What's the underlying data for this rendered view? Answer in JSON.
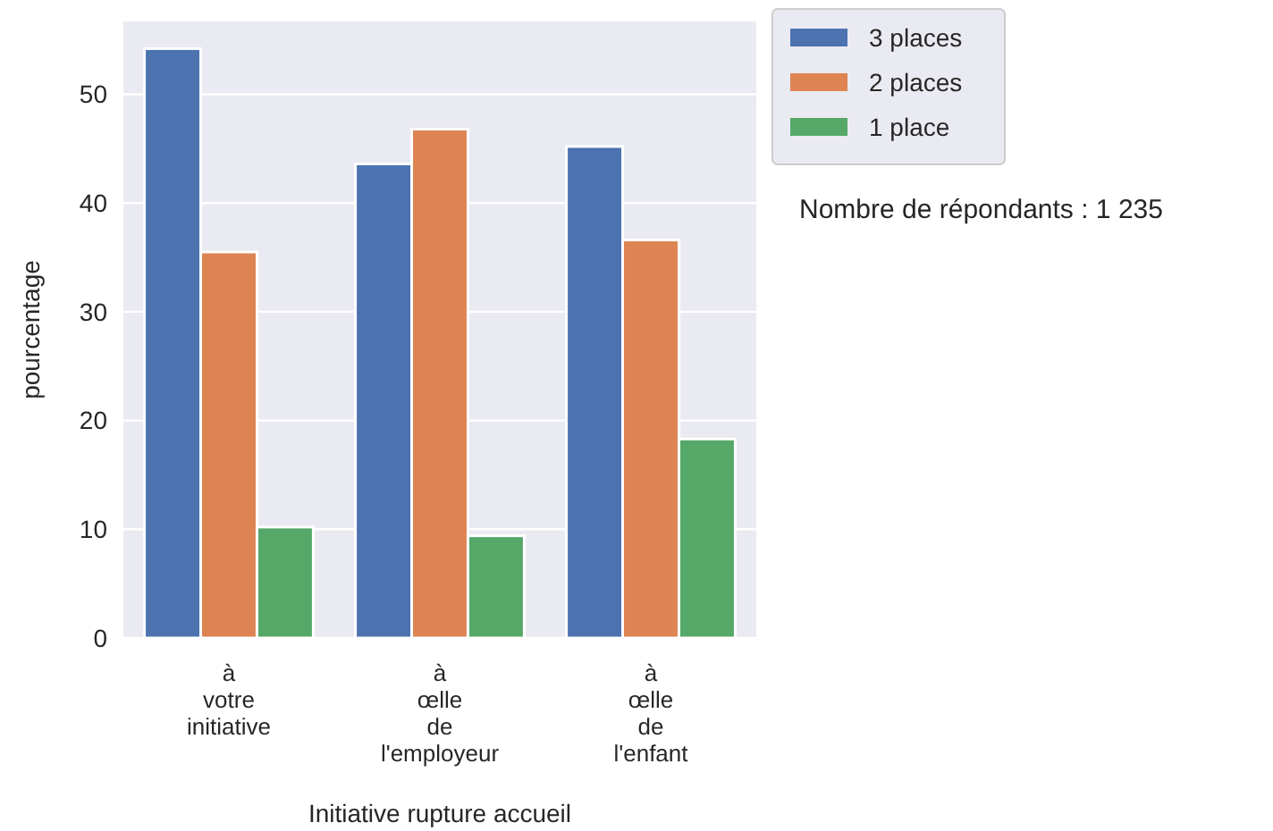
{
  "chart_data": {
    "type": "bar",
    "xlabel": "Initiative rupture accueil",
    "ylabel": "pourcentage",
    "categories": [
      "à\nvotre\ninitiative",
      "à\nœlle\nde\nl'employeur",
      "à\nœlle\nde\nl'enfant"
    ],
    "series": [
      {
        "name": "3 places",
        "color": "#4c72b0",
        "values": [
          54.2,
          43.6,
          45.2
        ]
      },
      {
        "name": "2 places",
        "color": "#dd8452",
        "values": [
          35.5,
          46.8,
          36.6
        ]
      },
      {
        "name": "1 place",
        "color": "#55a868",
        "values": [
          10.2,
          9.4,
          18.3
        ]
      }
    ],
    "ylim": [
      0,
      56.7
    ],
    "yticks": [
      0,
      10,
      20,
      30,
      40,
      50
    ],
    "grid": true,
    "legend": "top right",
    "annotations": [
      "Nombre de répondants : 1 235"
    ]
  }
}
